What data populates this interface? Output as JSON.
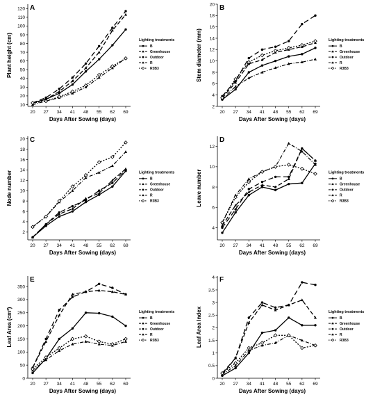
{
  "figure": {
    "legend_title": "Lighting treatments",
    "legend_labels": [
      "B",
      "Greenhouse",
      "Outdoor",
      "R",
      "R3B3"
    ],
    "series_styles": [
      {
        "name": "B",
        "dash": "",
        "width": 1.3,
        "marker": "circle-filled"
      },
      {
        "name": "Greenhouse",
        "dash": "6,3",
        "width": 1.3,
        "marker": "triangle"
      },
      {
        "name": "Outdoor",
        "dash": "7,4",
        "width": 1.3,
        "marker": "circle-filled"
      },
      {
        "name": "R",
        "dash": "5,2,1,2",
        "width": 1.2,
        "marker": "triangle"
      },
      {
        "name": "R3B3",
        "dash": "2,2",
        "width": 1.3,
        "marker": "diamond-open"
      }
    ]
  },
  "chart_data": [
    {
      "panel": "A",
      "type": "line",
      "xlabel": "Days After Sowing (days)",
      "ylabel": "Plant height (cm)",
      "x": [
        20,
        27,
        34,
        41,
        48,
        55,
        62,
        69
      ],
      "ylim": [
        8,
        125
      ],
      "yticks": [
        10,
        20,
        30,
        40,
        50,
        60,
        70,
        80,
        90,
        100,
        110,
        120
      ],
      "series": [
        {
          "name": "B",
          "values": [
            12,
            16,
            23,
            33,
            48,
            62,
            78,
            96
          ]
        },
        {
          "name": "Greenhouse",
          "values": [
            12,
            16,
            25,
            37,
            52,
            70,
            95,
            113
          ]
        },
        {
          "name": "Outdoor",
          "values": [
            12,
            18,
            28,
            41,
            57,
            77,
            98,
            117
          ]
        },
        {
          "name": "R",
          "values": [
            10,
            14,
            18,
            23,
            30,
            41,
            52,
            63
          ]
        },
        {
          "name": "R3B3",
          "values": [
            12,
            14,
            19,
            25,
            32,
            44,
            54,
            63
          ]
        }
      ]
    },
    {
      "panel": "B",
      "type": "line",
      "xlabel": "Days After Sowing (days)",
      "ylabel": "Stem diameter (mm)",
      "x": [
        20,
        27,
        34,
        41,
        48,
        55,
        62,
        69
      ],
      "ylim": [
        2,
        20
      ],
      "yticks": [
        2,
        4,
        6,
        8,
        10,
        12,
        14,
        16,
        18,
        20
      ],
      "series": [
        {
          "name": "B",
          "values": [
            3.2,
            5.0,
            8.0,
            9.2,
            10.0,
            10.8,
            11.2,
            12.3
          ]
        },
        {
          "name": "Greenhouse",
          "values": [
            3.5,
            6.2,
            9.5,
            10.2,
            11.5,
            12.0,
            12.5,
            13.2
          ]
        },
        {
          "name": "Outdoor",
          "values": [
            3.8,
            6.5,
            10.5,
            12.0,
            12.5,
            13.5,
            16.5,
            18.0
          ]
        },
        {
          "name": "R",
          "values": [
            3.3,
            5.5,
            7.0,
            8.0,
            8.8,
            9.5,
            9.8,
            10.3
          ]
        },
        {
          "name": "R3B3",
          "values": [
            3.5,
            6.8,
            9.8,
            11.0,
            11.8,
            12.3,
            12.8,
            13.5
          ]
        }
      ]
    },
    {
      "panel": "C",
      "type": "line",
      "xlabel": "Days After Sowing (days)",
      "ylabel": "Node number",
      "x": [
        20,
        27,
        34,
        41,
        48,
        55,
        62,
        69
      ],
      "ylim": [
        0.5,
        20.5
      ],
      "yticks": [
        2,
        4,
        6,
        8,
        10,
        12,
        14,
        16,
        18,
        20
      ],
      "series": [
        {
          "name": "B",
          "values": [
            1.0,
            3.2,
            5.0,
            6.0,
            7.8,
            9.2,
            10.8,
            13.8
          ]
        },
        {
          "name": "Greenhouse",
          "values": [
            1.0,
            3.5,
            5.5,
            6.5,
            8.5,
            9.5,
            12.0,
            14.2
          ]
        },
        {
          "name": "Outdoor",
          "values": [
            1.0,
            3.5,
            5.8,
            7.0,
            8.2,
            10.0,
            11.5,
            14.0
          ]
        },
        {
          "name": "R",
          "values": [
            3.0,
            5.0,
            7.8,
            10.0,
            12.5,
            13.5,
            14.8,
            17.5
          ]
        },
        {
          "name": "R3B3",
          "values": [
            3.0,
            5.0,
            8.0,
            10.8,
            13.0,
            15.5,
            16.5,
            19.3
          ]
        }
      ]
    },
    {
      "panel": "D",
      "type": "line",
      "xlabel": "Days After Sowing (days)",
      "ylabel": "Leave number",
      "x": [
        20,
        27,
        34,
        41,
        48,
        55,
        62,
        69
      ],
      "ylim": [
        2.8,
        13
      ],
      "yticks": [
        4,
        6,
        8,
        10,
        12
      ],
      "series": [
        {
          "name": "B",
          "values": [
            3.5,
            5.5,
            7.2,
            8.0,
            7.7,
            8.3,
            8.4,
            10.3
          ]
        },
        {
          "name": "Greenhouse",
          "values": [
            4.2,
            6.2,
            7.5,
            8.2,
            8.0,
            8.8,
            11.8,
            10.6
          ]
        },
        {
          "name": "Outdoor",
          "values": [
            4.0,
            5.8,
            7.8,
            8.5,
            9.0,
            9.0,
            11.8,
            10.6
          ]
        },
        {
          "name": "R",
          "values": [
            4.5,
            7.2,
            8.8,
            9.5,
            10.0,
            12.3,
            11.5,
            10.2
          ]
        },
        {
          "name": "R3B3",
          "values": [
            4.5,
            7.0,
            8.5,
            9.5,
            10.0,
            10.2,
            9.8,
            9.3
          ]
        }
      ]
    },
    {
      "panel": "E",
      "type": "line",
      "xlabel": "Days After Sowing (days)",
      "ylabel": "Leaf Area (cm²)",
      "x": [
        20,
        27,
        34,
        41,
        48,
        55,
        62,
        69
      ],
      "ylim": [
        0,
        390
      ],
      "yticks": [
        0,
        50,
        100,
        150,
        200,
        250,
        300,
        350
      ],
      "series": [
        {
          "name": "B",
          "values": [
            20,
            75,
            150,
            190,
            250,
            248,
            235,
            200
          ]
        },
        {
          "name": "Greenhouse",
          "values": [
            40,
            140,
            240,
            320,
            330,
            335,
            330,
            320
          ]
        },
        {
          "name": "Outdoor",
          "values": [
            40,
            150,
            260,
            310,
            330,
            360,
            345,
            320
          ]
        },
        {
          "name": "R",
          "values": [
            30,
            70,
            105,
            130,
            140,
            130,
            125,
            140
          ]
        },
        {
          "name": "R3B3",
          "values": [
            35,
            80,
            115,
            150,
            160,
            140,
            130,
            150
          ]
        }
      ]
    },
    {
      "panel": "F",
      "type": "line",
      "xlabel": "Days After Sowing (days)",
      "ylabel": "Leaf Area Index",
      "x": [
        20,
        27,
        34,
        41,
        48,
        55,
        62,
        69
      ],
      "ylim": [
        0,
        4.05
      ],
      "yticks": [
        0.0,
        0.5,
        1.0,
        1.5,
        2.0,
        2.5,
        3.0,
        3.5,
        4.0
      ],
      "series": [
        {
          "name": "B",
          "values": [
            0.1,
            0.4,
            1.0,
            1.8,
            1.9,
            2.4,
            2.1,
            2.1
          ]
        },
        {
          "name": "Greenhouse",
          "values": [
            0.15,
            0.8,
            2.2,
            2.9,
            2.7,
            2.9,
            3.1,
            2.4
          ]
        },
        {
          "name": "Outdoor",
          "values": [
            0.2,
            0.8,
            2.4,
            3.0,
            2.8,
            2.9,
            3.8,
            3.7
          ]
        },
        {
          "name": "R",
          "values": [
            0.15,
            0.5,
            1.1,
            1.3,
            1.4,
            1.7,
            1.5,
            1.3
          ]
        },
        {
          "name": "R3B3",
          "values": [
            0.2,
            0.6,
            1.2,
            1.4,
            1.7,
            1.7,
            1.2,
            1.3
          ]
        }
      ]
    }
  ]
}
